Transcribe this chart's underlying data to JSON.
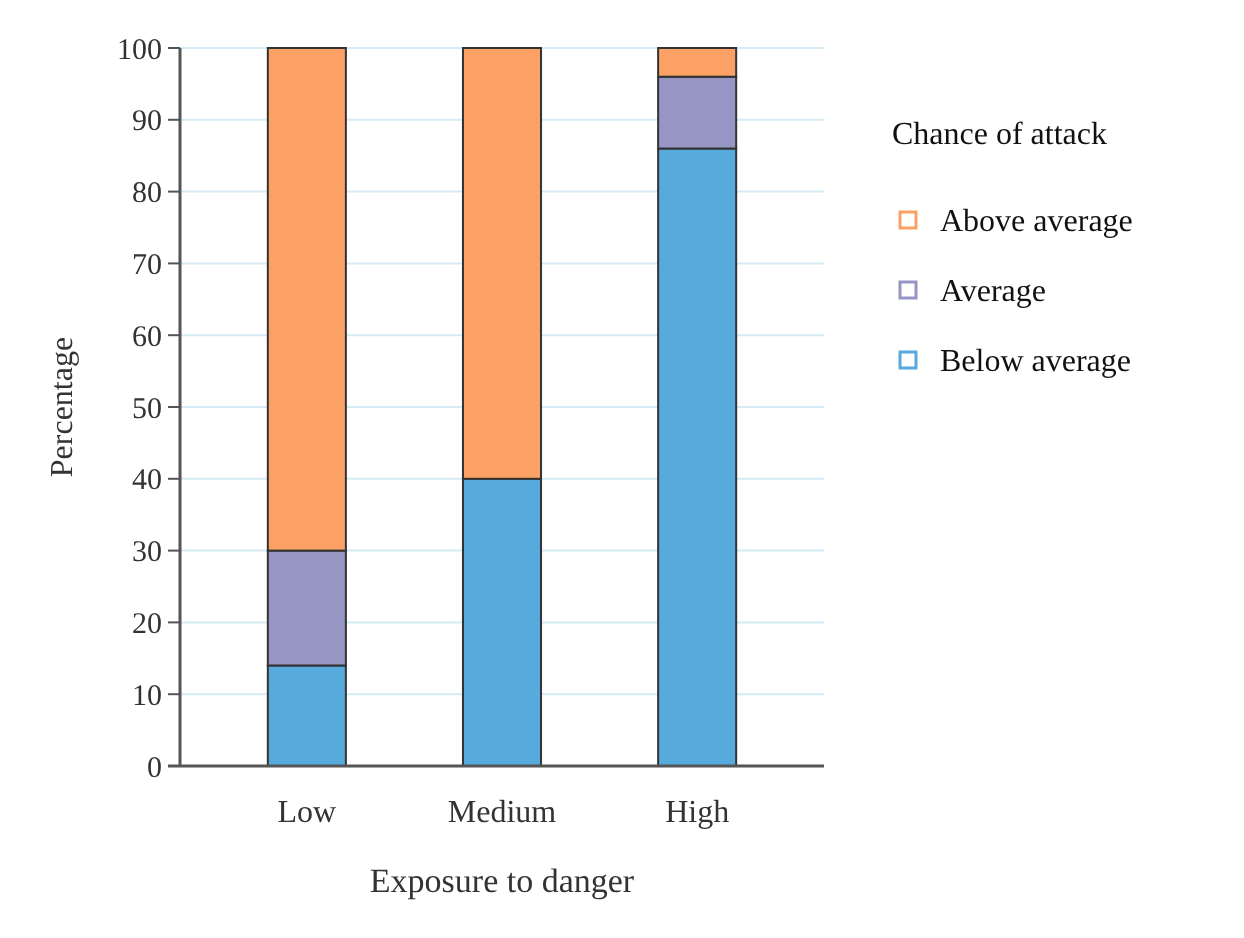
{
  "chart_data": {
    "type": "bar",
    "stacked": true,
    "xlabel": "Exposure to danger",
    "ylabel": "Percentage",
    "legend_title": "Chance of attack",
    "categories": [
      "Low",
      "Medium",
      "High"
    ],
    "series": [
      {
        "name": "Below average",
        "color": "#56aadc",
        "values": [
          14,
          40,
          86
        ]
      },
      {
        "name": "Average",
        "color": "#9695c4",
        "values": [
          16,
          0,
          10
        ]
      },
      {
        "name": "Above average",
        "color": "#fba165",
        "values": [
          70,
          60,
          4
        ]
      }
    ],
    "ylim": [
      0,
      100
    ],
    "yticks": [
      0,
      10,
      20,
      30,
      40,
      50,
      60,
      70,
      80,
      90,
      100
    ],
    "grid": "y",
    "legend": "right"
  }
}
